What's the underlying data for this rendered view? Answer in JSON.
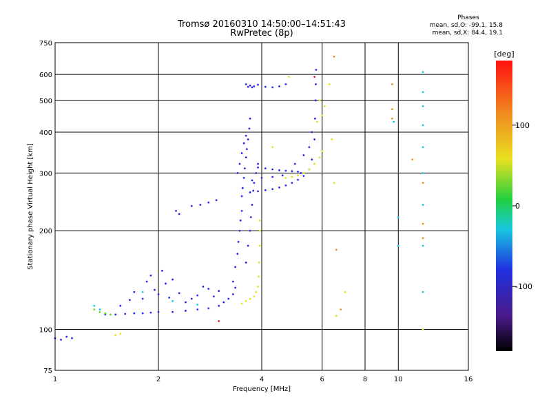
{
  "colors": {
    "blue": "#2a2ae8",
    "cyan": "#18c8e0",
    "green": "#6cd020",
    "yellow": "#e8e020",
    "orange": "#f09020",
    "red": "#e02020",
    "grid": "#000000"
  },
  "header": {
    "title_line1": "Tromsø 20160310 14:50:00–14:51:43",
    "title_line2": "RwPretec (8p)"
  },
  "phases": {
    "title": "Phases",
    "line_o": "mean, sd,O: -99.1, 15.8",
    "line_x": "mean, sd,X:  84.4, 19.1"
  },
  "colorbar": {
    "label": "[deg]",
    "ticks": [
      "100",
      "0",
      "-100"
    ],
    "tick_values": [
      100,
      0,
      -100
    ],
    "range": [
      -180,
      180
    ]
  },
  "chart_data": {
    "type": "scatter",
    "title": "Tromsø 20160310 14:50:00–14:51:43",
    "subtitle": "RwPretec (8p)",
    "xlabel": "Frequency [MHz]",
    "ylabel": "Stationary phase Virtual Height [km]",
    "x_scale": "log",
    "y_scale": "log",
    "xlim": [
      1,
      16
    ],
    "ylim": [
      75,
      750
    ],
    "grid": true,
    "x_ticks": [
      1,
      2,
      4,
      6,
      8,
      10,
      16
    ],
    "x_tick_labels": [
      "1",
      "2",
      "4",
      "6",
      "8",
      "10",
      "16"
    ],
    "y_ticks": [
      75,
      100,
      200,
      300,
      400,
      500,
      600,
      750
    ],
    "y_tick_labels": [
      "75",
      "100",
      "200",
      "300",
      "400",
      "500",
      "600",
      "750"
    ],
    "series": [
      {
        "color": "blue",
        "points": [
          [
            1.0,
            94
          ],
          [
            1.04,
            93
          ],
          [
            1.08,
            95
          ],
          [
            1.12,
            94
          ],
          [
            1.4,
            111
          ],
          [
            1.5,
            111
          ],
          [
            1.6,
            111.5
          ],
          [
            1.7,
            112
          ],
          [
            1.8,
            112
          ],
          [
            1.9,
            112.5
          ],
          [
            2.0,
            113
          ],
          [
            2.2,
            113
          ],
          [
            2.4,
            114
          ],
          [
            2.6,
            115
          ],
          [
            2.8,
            116
          ],
          [
            3.0,
            118
          ],
          [
            3.1,
            121
          ],
          [
            3.2,
            124
          ],
          [
            3.3,
            128
          ],
          [
            3.35,
            134
          ],
          [
            1.55,
            118
          ],
          [
            1.65,
            123
          ],
          [
            1.7,
            130
          ],
          [
            1.8,
            124
          ],
          [
            1.85,
            140
          ],
          [
            1.9,
            146
          ],
          [
            1.95,
            132
          ],
          [
            2.0,
            128
          ],
          [
            2.05,
            151
          ],
          [
            2.1,
            138
          ],
          [
            2.15,
            125
          ],
          [
            2.2,
            142
          ],
          [
            2.3,
            129
          ],
          [
            2.4,
            121
          ],
          [
            2.5,
            124
          ],
          [
            2.6,
            127
          ],
          [
            2.7,
            135
          ],
          [
            2.8,
            133
          ],
          [
            2.9,
            126
          ],
          [
            3.0,
            131
          ],
          [
            2.25,
            230
          ],
          [
            2.3,
            225
          ],
          [
            2.5,
            238
          ],
          [
            2.65,
            240
          ],
          [
            2.8,
            244
          ],
          [
            2.95,
            248
          ],
          [
            3.3,
            140
          ],
          [
            3.35,
            155
          ],
          [
            3.4,
            170
          ],
          [
            3.42,
            185
          ],
          [
            3.45,
            200
          ],
          [
            3.47,
            215
          ],
          [
            3.5,
            230
          ],
          [
            3.5,
            255
          ],
          [
            3.52,
            270
          ],
          [
            3.55,
            290
          ],
          [
            3.57,
            310
          ],
          [
            3.6,
            335
          ],
          [
            3.62,
            355
          ],
          [
            3.65,
            380
          ],
          [
            3.68,
            410
          ],
          [
            3.7,
            440
          ],
          [
            3.4,
            300
          ],
          [
            3.45,
            320
          ],
          [
            3.5,
            345
          ],
          [
            3.55,
            370
          ],
          [
            3.6,
            390
          ],
          [
            3.6,
            160
          ],
          [
            3.65,
            180
          ],
          [
            3.7,
            200
          ],
          [
            3.72,
            220
          ],
          [
            3.75,
            240
          ],
          [
            3.78,
            265
          ],
          [
            3.8,
            280
          ],
          [
            3.85,
            300
          ],
          [
            3.9,
            320
          ],
          [
            3.6,
            560
          ],
          [
            3.65,
            550
          ],
          [
            3.7,
            555
          ],
          [
            3.75,
            548
          ],
          [
            3.8,
            552
          ],
          [
            3.9,
            558
          ],
          [
            4.1,
            550
          ],
          [
            4.3,
            548
          ],
          [
            4.5,
            552
          ],
          [
            4.7,
            560
          ],
          [
            3.7,
            262
          ],
          [
            3.9,
            264
          ],
          [
            4.1,
            266
          ],
          [
            4.3,
            268
          ],
          [
            4.5,
            271
          ],
          [
            4.7,
            275
          ],
          [
            4.9,
            280
          ],
          [
            5.1,
            286
          ],
          [
            5.3,
            294
          ],
          [
            5.5,
            308
          ],
          [
            5.6,
            330
          ],
          [
            5.7,
            380
          ],
          [
            5.72,
            440
          ],
          [
            5.74,
            500
          ],
          [
            5.75,
            560
          ],
          [
            5.76,
            620
          ],
          [
            3.9,
            312
          ],
          [
            4.1,
            310
          ],
          [
            4.3,
            308
          ],
          [
            4.5,
            306
          ],
          [
            4.7,
            305
          ],
          [
            4.9,
            304
          ],
          [
            5.1,
            303
          ],
          [
            5.2,
            300
          ],
          [
            3.75,
            285
          ],
          [
            4.0,
            290
          ],
          [
            4.3,
            292
          ],
          [
            4.6,
            295
          ],
          [
            5.0,
            320
          ],
          [
            5.3,
            340
          ],
          [
            5.5,
            360
          ],
          [
            5.6,
            400
          ]
        ]
      },
      {
        "color": "cyan",
        "points": [
          [
            1.3,
            118
          ],
          [
            1.35,
            115
          ],
          [
            1.8,
            130
          ],
          [
            2.2,
            122
          ],
          [
            2.6,
            119
          ],
          [
            10.0,
            180
          ],
          [
            10.0,
            220
          ],
          [
            11.8,
            130
          ],
          [
            11.8,
            180
          ],
          [
            11.8,
            240
          ],
          [
            11.8,
            300
          ],
          [
            11.8,
            360
          ],
          [
            11.8,
            420
          ],
          [
            11.8,
            480
          ],
          [
            11.8,
            530
          ],
          [
            11.8,
            610
          ],
          [
            9.7,
            430
          ]
        ]
      },
      {
        "color": "green",
        "points": [
          [
            1.3,
            115
          ],
          [
            1.35,
            113
          ],
          [
            1.4,
            112
          ],
          [
            1.45,
            111
          ]
        ]
      },
      {
        "color": "yellow",
        "points": [
          [
            1.5,
            96
          ],
          [
            1.55,
            97
          ],
          [
            3.5,
            120
          ],
          [
            3.6,
            122
          ],
          [
            3.7,
            124
          ],
          [
            3.8,
            126
          ],
          [
            3.85,
            130
          ],
          [
            3.9,
            135
          ],
          [
            3.92,
            145
          ],
          [
            3.93,
            160
          ],
          [
            3.95,
            180
          ],
          [
            3.95,
            200
          ],
          [
            3.95,
            215
          ],
          [
            4.7,
            290
          ],
          [
            4.9,
            292
          ],
          [
            5.1,
            295
          ],
          [
            5.3,
            300
          ],
          [
            5.5,
            308
          ],
          [
            5.7,
            320
          ],
          [
            5.9,
            335
          ],
          [
            6.0,
            350
          ],
          [
            6.0,
            450
          ],
          [
            6.1,
            480
          ],
          [
            4.3,
            360
          ],
          [
            4.8,
            590
          ],
          [
            5.8,
            430
          ],
          [
            5.9,
            500
          ],
          [
            6.3,
            560
          ],
          [
            6.4,
            380
          ],
          [
            6.5,
            280
          ],
          [
            6.6,
            110
          ],
          [
            7.0,
            130
          ],
          [
            11.8,
            100
          ]
        ]
      },
      {
        "color": "orange",
        "points": [
          [
            6.5,
            680
          ],
          [
            6.6,
            175
          ],
          [
            6.8,
            115
          ],
          [
            9.6,
            560
          ],
          [
            9.6,
            470
          ],
          [
            9.6,
            440
          ],
          [
            11.0,
            330
          ],
          [
            11.8,
            280
          ],
          [
            11.8,
            210
          ],
          [
            11.8,
            190
          ]
        ]
      },
      {
        "color": "red",
        "points": [
          [
            3.0,
            106
          ],
          [
            5.7,
            590
          ]
        ]
      }
    ]
  }
}
